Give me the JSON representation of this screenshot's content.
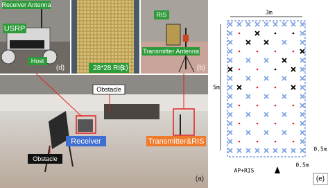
{
  "panels": {
    "d": {
      "tag": "(d)",
      "labels": [
        "Receiver Antenna",
        "USRP",
        "Host"
      ]
    },
    "c": {
      "tag": "(c)",
      "labels": [
        "28*28 RIS"
      ]
    },
    "b": {
      "tag": "(b)",
      "labels": [
        "RIS",
        "Transmitter Antenna"
      ]
    },
    "a": {
      "tag": "(a)",
      "labels": [
        "Obstacle",
        "Receiver",
        "Transmitter&RIS",
        "Obstacle"
      ]
    },
    "e": {
      "tag": "(e)",
      "width": "3m",
      "height": "5m",
      "spacing_x": "0.5m",
      "spacing_y": "0.5m",
      "ap": "AP+RIS"
    }
  }
}
